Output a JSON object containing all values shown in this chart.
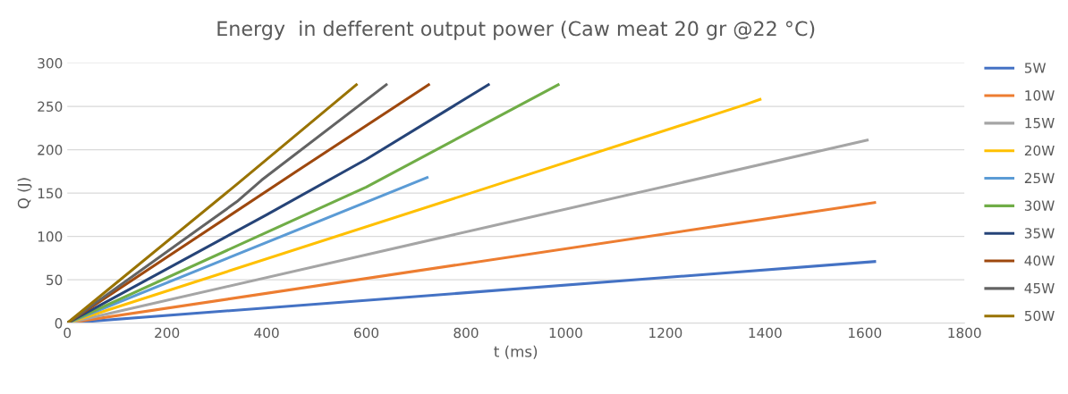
{
  "chart_data": {
    "type": "line",
    "title": "Energy  in defferent output power (Caw meat 20 gr @22 °C)",
    "xlabel": "t (ms)",
    "ylabel": "Q (J)",
    "xlim": [
      0,
      1800
    ],
    "xticks": [
      0,
      200,
      400,
      600,
      800,
      1000,
      1200,
      1400,
      1600,
      1800
    ],
    "ylim": [
      0,
      300
    ],
    "yticks": [
      0,
      50,
      100,
      150,
      200,
      250,
      300
    ],
    "grid": "y",
    "legend": "right",
    "marker": "none",
    "line_style": "solid",
    "series": [
      {
        "name": "5W",
        "color": "#4472c4",
        "x": [
          0,
          1620
        ],
        "values": [
          0,
          71
        ]
      },
      {
        "name": "10W",
        "color": "#ed7d31",
        "x": [
          0,
          1620
        ],
        "values": [
          0,
          139
        ]
      },
      {
        "name": "15W",
        "color": "#a5a5a5",
        "x": [
          0,
          1605
        ],
        "values": [
          0,
          211
        ]
      },
      {
        "name": "20W",
        "color": "#ffc000",
        "x": [
          0,
          1360,
          1390
        ],
        "values": [
          0,
          252,
          258
        ]
      },
      {
        "name": "25W",
        "color": "#5b9bd5",
        "x": [
          0,
          722
        ],
        "values": [
          0,
          168
        ]
      },
      {
        "name": "30W",
        "color": "#70ad47",
        "x": [
          0,
          600,
          985
        ],
        "values": [
          0,
          157,
          275
        ]
      },
      {
        "name": "35W",
        "color": "#264478",
        "x": [
          0,
          400,
          600,
          845
        ],
        "values": [
          0,
          125,
          189,
          275
        ]
      },
      {
        "name": "40W",
        "color": "#9e480e",
        "x": [
          0,
          460,
          725
        ],
        "values": [
          0,
          175,
          275
        ]
      },
      {
        "name": "45W",
        "color": "#636363",
        "x": [
          0,
          340,
          390,
          640
        ],
        "values": [
          0,
          140,
          165,
          275
        ]
      },
      {
        "name": "50W",
        "color": "#997300",
        "x": [
          0,
          340,
          580
        ],
        "values": [
          0,
          160,
          275
        ]
      }
    ]
  }
}
